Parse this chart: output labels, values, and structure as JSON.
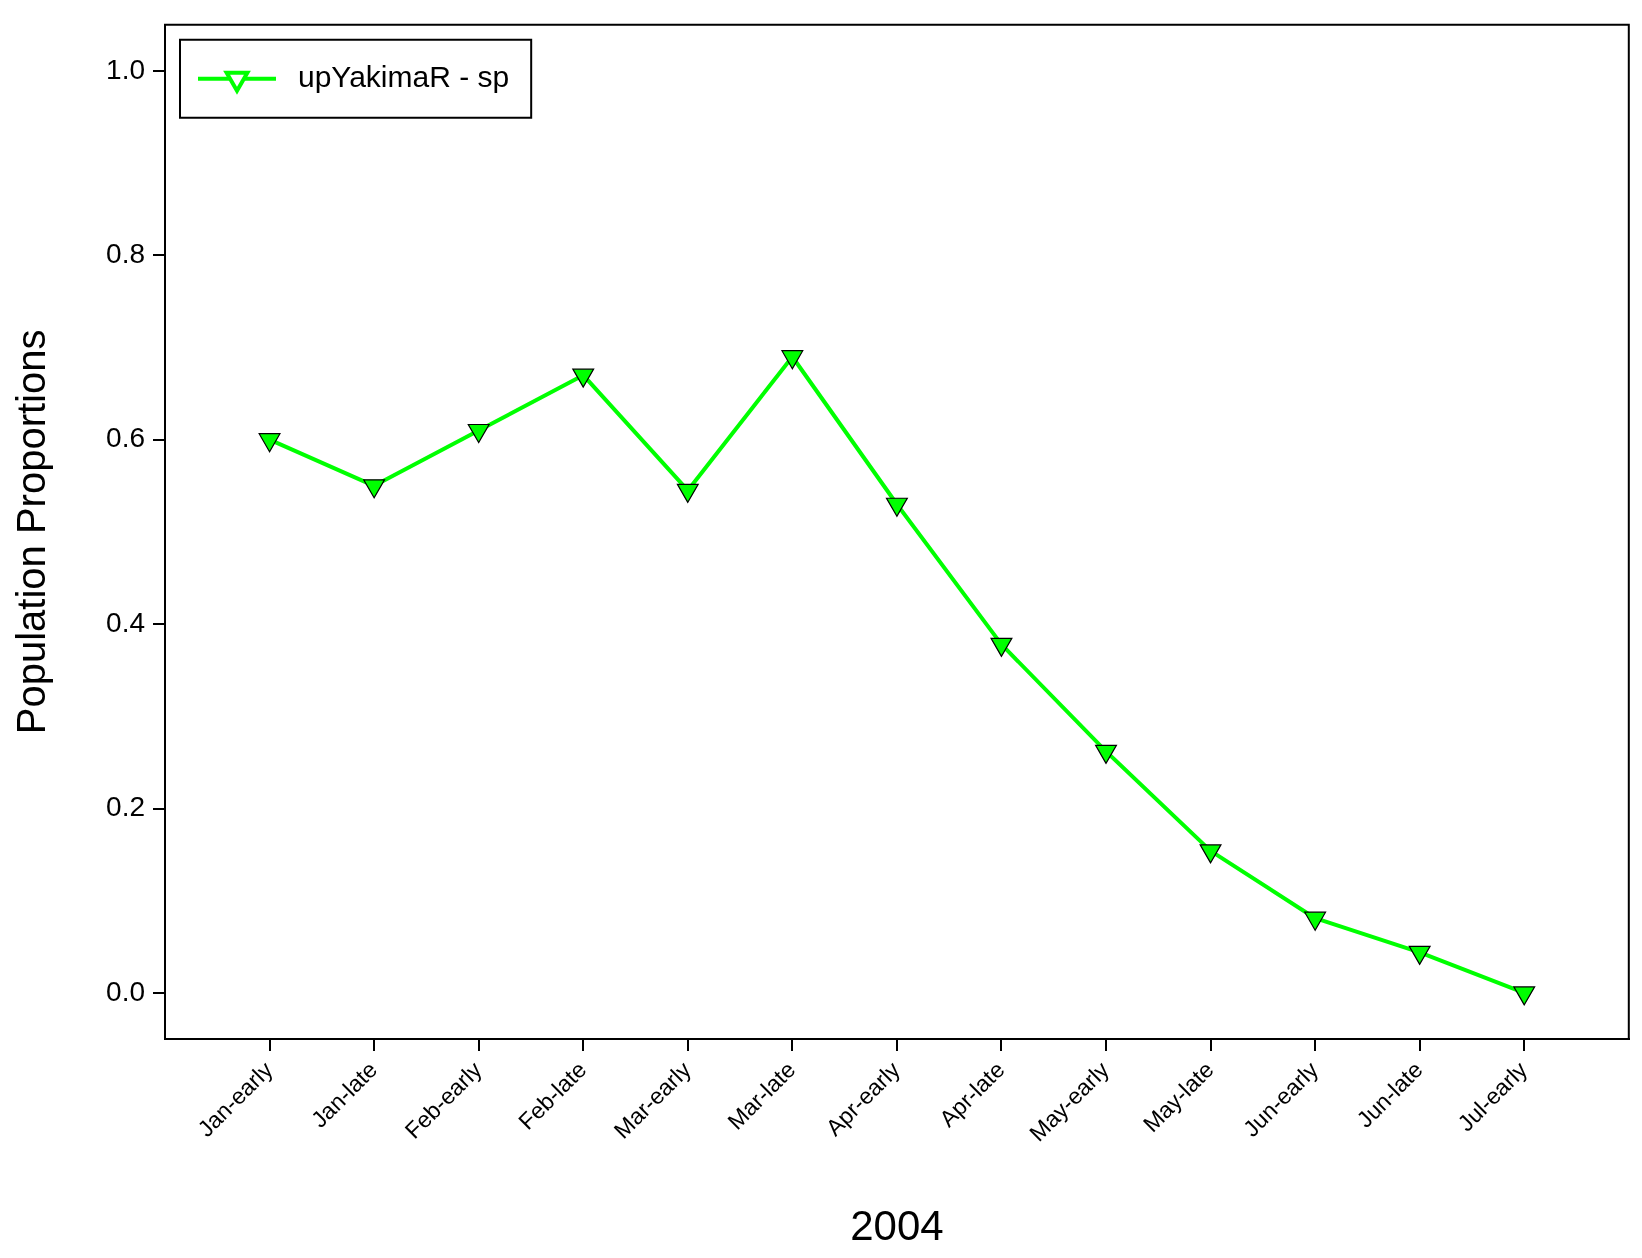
{
  "chart_data": {
    "type": "line",
    "xlabel": "2004",
    "ylabel": "Population Proportions",
    "categories": [
      "Jan-early",
      "Jan-late",
      "Feb-early",
      "Feb-late",
      "Mar-early",
      "Mar-late",
      "Apr-early",
      "Apr-late",
      "May-early",
      "May-late",
      "Jun-early",
      "Jun-late",
      "Jul-early"
    ],
    "series": [
      {
        "name": "upYakimaR - sp",
        "color": "#00ff00",
        "values": [
          0.6,
          0.55,
          0.61,
          0.67,
          0.545,
          0.69,
          0.53,
          0.378,
          0.262,
          0.154,
          0.081,
          0.044,
          0.0
        ]
      }
    ],
    "ylim": [
      -0.05,
      1.05
    ],
    "yticks": [
      {
        "value": 0,
        "label": "0.0"
      },
      {
        "value": 0.2,
        "label": "0.2"
      },
      {
        "value": 0.4,
        "label": "0.4"
      },
      {
        "value": 0.6,
        "label": "0.6"
      },
      {
        "value": 0.8,
        "label": "0.8"
      },
      {
        "value": 1,
        "label": "1.0"
      }
    ],
    "legend": "top left",
    "marker": "triangle",
    "line_style": "solid"
  }
}
